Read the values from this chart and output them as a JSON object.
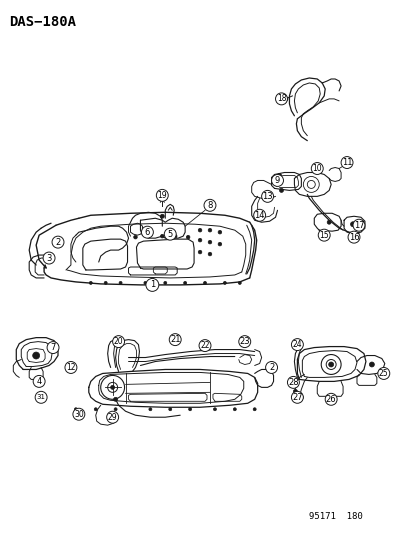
{
  "title": "DAS−180A",
  "page_code": "95171  180",
  "bg_color": "#ffffff",
  "fig_width": 4.14,
  "fig_height": 5.33,
  "dpi": 100,
  "title_fontsize": 10,
  "title_fontfamily": "monospace",
  "page_code_fontsize": 6.5
}
